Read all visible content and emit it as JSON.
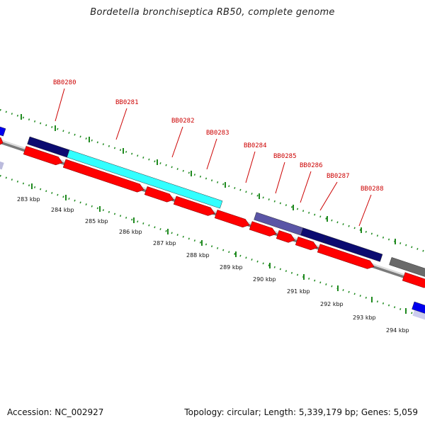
{
  "title": "Bordetella bronchiseptica RB50, complete genome",
  "footer": {
    "accession": "Accession: NC_002927",
    "stats": "Topology: circular; Length: 5,339,179 bp; Genes: 5,059"
  },
  "colors": {
    "cds_red": "#ff0000",
    "gene_navy": "#0b0b70",
    "gene_cyan": "#33ffff",
    "gene_slate": "#5a55a6",
    "gene_grey": "#6a6a6a",
    "gene_blue": "#0000ee",
    "tick_green": "#1f8a1f",
    "backbone_grey": "#888888",
    "label_red": "#cc0000"
  },
  "kbp_labels": [
    "283 kbp",
    "284 kbp",
    "285 kbp",
    "286 kbp",
    "287 kbp",
    "288 kbp",
    "289 kbp",
    "290 kbp",
    "291 kbp",
    "292 kbp",
    "293 kbp",
    "294 kbp"
  ],
  "gene_labels": [
    "BB0280",
    "BB0281",
    "BB0282",
    "BB0283",
    "BB0284",
    "BB0285",
    "BB0286",
    "BB0287",
    "BB0288"
  ]
}
